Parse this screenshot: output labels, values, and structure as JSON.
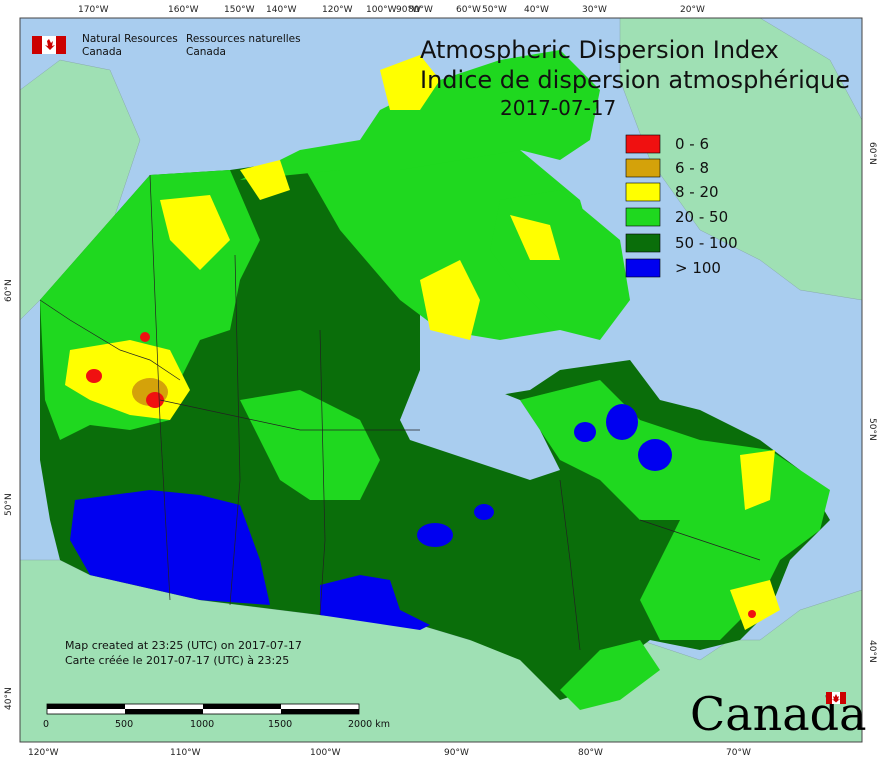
{
  "agency": {
    "name_en_line1": "Natural Resources",
    "name_en_line2": "Canada",
    "name_fr_line1": "Ressources naturelles",
    "name_fr_line2": "Canada"
  },
  "title": {
    "en": "Atmospheric Dispersion Index",
    "fr": "Indice de dispersion atmosphérique",
    "date": "2017-07-17"
  },
  "legend": [
    {
      "label": "0 - 6",
      "color": "#f01010"
    },
    {
      "label": "6 - 8",
      "color": "#d4a20a"
    },
    {
      "label": "8 - 20",
      "color": "#ffff00"
    },
    {
      "label": "20 - 50",
      "color": "#1fd81f"
    },
    {
      "label": "50 - 100",
      "color": "#0a6e0a"
    },
    {
      "label": "> 100",
      "color": "#0000f0"
    }
  ],
  "notes": {
    "created_en": "Map created at 23:25 (UTC) on 2017-07-17",
    "created_fr": "Carte créée le 2017-07-17 (UTC) à 23:25"
  },
  "scale_bar": {
    "labels": [
      "0",
      "500",
      "1000",
      "1500",
      "2000 km"
    ]
  },
  "graticule": {
    "top": [
      "170°W",
      "160°W",
      "150°W",
      "140°W",
      "120°W",
      "100°W",
      "90°W",
      "80°W",
      "60°W",
      "50°W",
      "40°W",
      "30°W",
      "20°W"
    ],
    "bottom": [
      "120°W",
      "110°W",
      "100°W",
      "90°W",
      "80°W",
      "70°W"
    ],
    "left": [
      "60°N",
      "50°N",
      "40°N"
    ],
    "right": [
      "60°N",
      "50°N",
      "40°N"
    ]
  },
  "wordmark": "Canada",
  "colors": {
    "ocean": "#a9cdef",
    "land_other": "#9fe0b4",
    "border": "#333333"
  }
}
